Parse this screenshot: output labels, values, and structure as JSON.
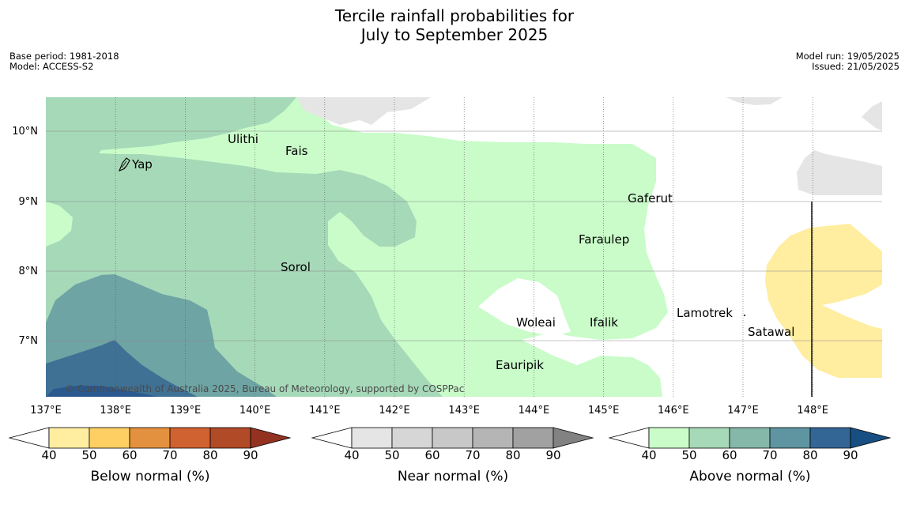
{
  "title_line1": "Tercile rainfall probabilities for",
  "title_line2": "July to September 2025",
  "base_period": "Base period: 1981-2018",
  "model": "Model: ACCESS-S2",
  "model_run": "Model run: 19/05/2025",
  "issued": "Issued: 21/05/2025",
  "copyright": "© Commonwealth of Australia 2025, Bureau of Meteorology, supported by COSPPac",
  "lat_labels": [
    "10°N",
    "9°N",
    "8°N",
    "7°N"
  ],
  "lon_labels": [
    "137°E",
    "138°E",
    "139°E",
    "140°E",
    "141°E",
    "142°E",
    "143°E",
    "144°E",
    "145°E",
    "146°E",
    "147°E",
    "148°E"
  ],
  "places": [
    "Ulithi",
    "Fais",
    "Yap",
    "Gaferut",
    "Faraulep",
    "Sorol",
    "Lamotrek",
    "Woleai",
    "Ifalik",
    "Satawal",
    "Eauripik"
  ],
  "colorbars": [
    {
      "label": "Below normal (%)",
      "ticks": [
        "40",
        "50",
        "60",
        "70",
        "80",
        "90"
      ],
      "colors": [
        "#ffeda0",
        "#fed063",
        "#e3913f",
        "#cf6230",
        "#b04a27",
        "#943221"
      ]
    },
    {
      "label": "Near normal (%)",
      "ticks": [
        "40",
        "50",
        "60",
        "70",
        "80",
        "90"
      ],
      "colors": [
        "#e5e5e5",
        "#d6d6d6",
        "#c8c8c8",
        "#b5b5b5",
        "#a1a1a1",
        "#828282"
      ]
    },
    {
      "label": "Above normal (%)",
      "ticks": [
        "40",
        "50",
        "60",
        "70",
        "80",
        "90"
      ],
      "colors": [
        "#c9fcc9",
        "#a6d9b8",
        "#85b8a9",
        "#5e95a0",
        "#336695",
        "#184f82"
      ]
    }
  ]
}
